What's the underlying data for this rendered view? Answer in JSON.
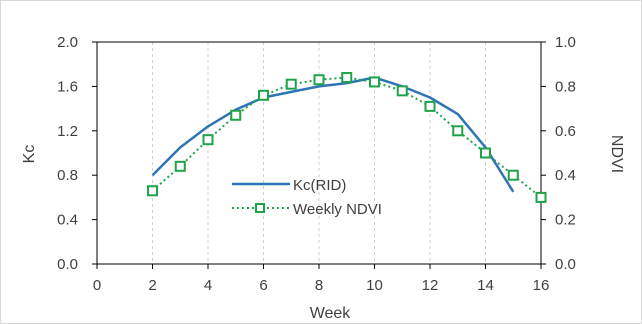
{
  "chart_data": {
    "type": "line",
    "title": "",
    "xlabel": "Week",
    "ylabel": "Kc",
    "y2label": "NDVI",
    "xlim": [
      0,
      16
    ],
    "ylim": [
      0.0,
      2.0
    ],
    "y2lim": [
      0.0,
      1.0
    ],
    "x_ticks": [
      "0",
      "2",
      "4",
      "6",
      "8",
      "10",
      "12",
      "14",
      "16"
    ],
    "y_ticks": [
      "0.0",
      "0.4",
      "0.8",
      "1.2",
      "1.6",
      "2.0"
    ],
    "y2_ticks": [
      "0.0",
      "0.2",
      "0.4",
      "0.6",
      "0.8",
      "1.0"
    ],
    "grid": "vertical dashed",
    "legend_position": "center",
    "series": [
      {
        "name": "Kc(RID)",
        "axis": "left",
        "style": "solid line",
        "color": "#2e75b6",
        "x": [
          2,
          3,
          4,
          5,
          6,
          7,
          8,
          9,
          10,
          11,
          12,
          13,
          14,
          15
        ],
        "values": [
          0.8,
          1.05,
          1.24,
          1.39,
          1.5,
          1.55,
          1.6,
          1.63,
          1.68,
          1.6,
          1.5,
          1.35,
          1.05,
          0.65
        ]
      },
      {
        "name": "Weekly NDVI",
        "axis": "right",
        "style": "dotted line with square markers",
        "color": "#1ea34a",
        "x": [
          2,
          3,
          4,
          5,
          6,
          7,
          8,
          9,
          10,
          11,
          12,
          13,
          14,
          15,
          16
        ],
        "values": [
          0.33,
          0.44,
          0.56,
          0.67,
          0.76,
          0.81,
          0.83,
          0.84,
          0.82,
          0.78,
          0.71,
          0.6,
          0.5,
          0.4,
          0.3
        ]
      }
    ]
  }
}
